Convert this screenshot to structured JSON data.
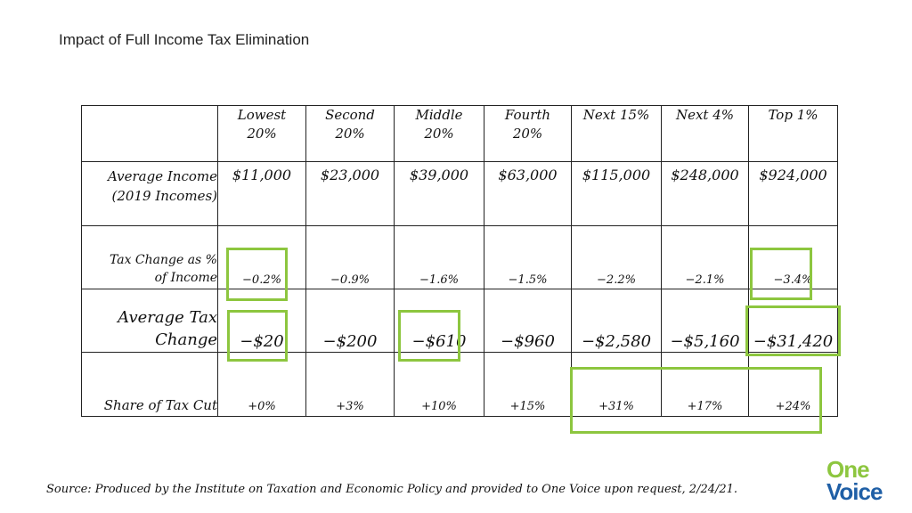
{
  "slide": {
    "title": "Impact of Full Income Tax Elimination",
    "source": "Source: Produced by the Institute on Taxation and Economic Policy and provided to One Voice upon request, 2/24/21."
  },
  "logo": {
    "line1": "One",
    "line2": "Voice"
  },
  "colors": {
    "highlight": "#8dc63f",
    "logo_green": "#8dc63f",
    "logo_blue": "#1f5fa6"
  },
  "table": {
    "columns": [
      {
        "line1": "Lowest",
        "line2": "20%"
      },
      {
        "line1": "Second",
        "line2": "20%"
      },
      {
        "line1": "Middle",
        "line2": "20%"
      },
      {
        "line1": "Fourth",
        "line2": "20%"
      },
      {
        "line1": "Next 15%",
        "line2": ""
      },
      {
        "line1": "Next 4%",
        "line2": ""
      },
      {
        "line1": "Top 1%",
        "line2": ""
      }
    ],
    "rows": {
      "average_income": {
        "label_line1": "Average Income",
        "label_line2": "(2019 Incomes)",
        "values": [
          "$11,000",
          "$23,000",
          "$39,000",
          "$63,000",
          "$115,000",
          "$248,000",
          "$924,000"
        ]
      },
      "tax_change_pct": {
        "label_line1": "Tax Change  as %",
        "label_line2": "of Income",
        "values": [
          "−0.2%",
          "−0.9%",
          "−1.6%",
          "−1.5%",
          "−2.2%",
          "−2.1%",
          "−3.4%"
        ]
      },
      "average_tax_change": {
        "label_line1": "Average Tax",
        "label_line2": "Change",
        "values": [
          "−$20",
          "−$200",
          "−$610",
          "−$960",
          "−$2,580",
          "−$5,160",
          "−$31,420"
        ]
      },
      "share_of_tax_cut": {
        "label": "Share of Tax Cut",
        "values": [
          "+0%",
          "+3%",
          "+10%",
          "+15%",
          "+31%",
          "+17%",
          "+24%"
        ]
      }
    }
  }
}
